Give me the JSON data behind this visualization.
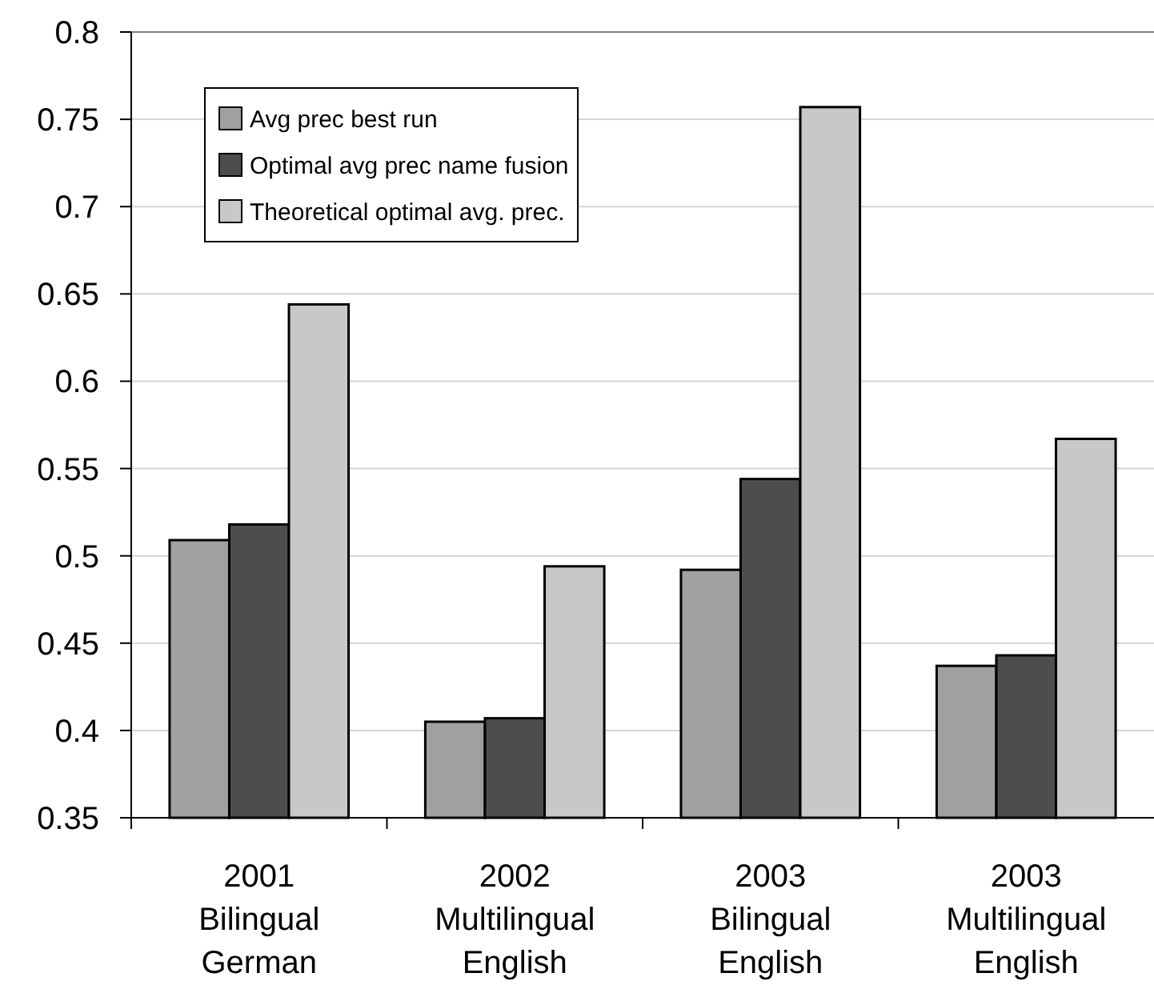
{
  "chart_data": {
    "type": "bar",
    "categories": [
      "2001\nBilingual\nGerman",
      "2002\nMultilingual\nEnglish",
      "2003\nBilingual\nEnglish",
      "2003\nMultilingual\nEnglish"
    ],
    "series": [
      {
        "name": "Avg prec best run",
        "color": "#a0a0a0",
        "values": [
          0.509,
          0.405,
          0.492,
          0.437
        ]
      },
      {
        "name": "Optimal avg prec name fusion",
        "color": "#4d4d4d",
        "values": [
          0.518,
          0.407,
          0.544,
          0.443
        ]
      },
      {
        "name": "Theoretical optimal avg. prec.",
        "color": "#c8c8c8",
        "values": [
          0.644,
          0.494,
          0.757,
          0.567
        ]
      }
    ],
    "ylim": [
      0.35,
      0.8
    ],
    "yticks": [
      0.35,
      0.4,
      0.45,
      0.5,
      0.55,
      0.6,
      0.65,
      0.7,
      0.75,
      0.8
    ],
    "grid": "y",
    "legend": "top left"
  }
}
